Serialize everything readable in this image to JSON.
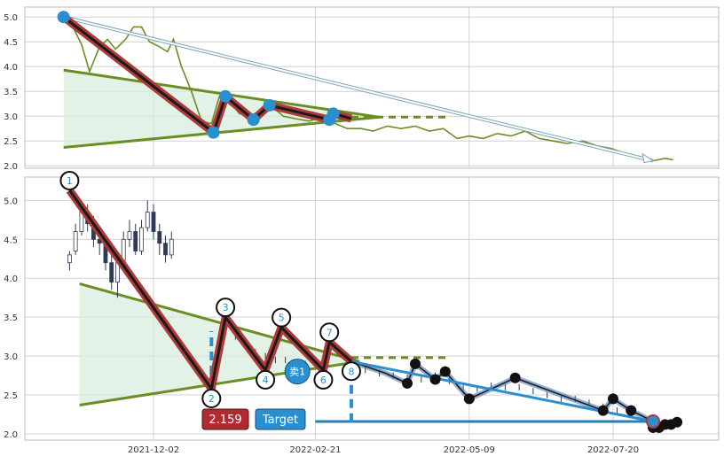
{
  "chart_data": [
    {
      "type": "line",
      "panel": "top",
      "ylim": [
        1.95,
        5.2
      ],
      "yticks": [
        "2.0",
        "2.5",
        "3.0",
        "3.5",
        "4.0",
        "4.5",
        "5.0"
      ],
      "ytick_values": [
        2.0,
        2.5,
        3.0,
        3.5,
        4.0,
        4.5,
        5.0
      ],
      "grid": true,
      "series": [
        {
          "role": "price",
          "color": "#6b8e23",
          "points": [
            [
              "2021-10-18",
              5.0
            ],
            [
              "2021-10-22",
              4.85
            ],
            [
              "2021-10-27",
              4.45
            ],
            [
              "2021-10-31",
              3.9
            ],
            [
              "2021-11-05",
              4.4
            ],
            [
              "2021-11-09",
              4.55
            ],
            [
              "2021-11-13",
              4.35
            ],
            [
              "2021-11-18",
              4.55
            ],
            [
              "2021-11-22",
              4.8
            ],
            [
              "2021-11-26",
              4.8
            ],
            [
              "2021-11-30",
              4.5
            ],
            [
              "2021-12-05",
              4.4
            ],
            [
              "2021-12-09",
              4.3
            ],
            [
              "2021-12-12",
              4.55
            ],
            [
              "2021-12-16",
              4.0
            ],
            [
              "2021-12-21",
              3.5
            ],
            [
              "2021-12-26",
              2.9
            ],
            [
              "2021-12-31",
              2.85
            ],
            [
              "2022-01-04",
              3.4
            ],
            [
              "2022-01-09",
              3.3
            ],
            [
              "2022-01-14",
              3.05
            ],
            [
              "2022-01-19",
              3.0
            ],
            [
              "2022-01-24",
              3.1
            ],
            [
              "2022-01-30",
              3.2
            ],
            [
              "2022-02-05",
              3.0
            ],
            [
              "2022-02-11",
              2.95
            ],
            [
              "2022-02-18",
              2.9
            ],
            [
              "2022-02-25",
              3.0
            ],
            [
              "2022-03-03",
              2.85
            ],
            [
              "2022-03-09",
              2.75
            ],
            [
              "2022-03-16",
              2.75
            ],
            [
              "2022-03-22",
              2.7
            ],
            [
              "2022-03-29",
              2.8
            ],
            [
              "2022-04-05",
              2.75
            ],
            [
              "2022-04-12",
              2.8
            ],
            [
              "2022-04-19",
              2.7
            ],
            [
              "2022-04-26",
              2.75
            ],
            [
              "2022-05-03",
              2.55
            ],
            [
              "2022-05-09",
              2.6
            ],
            [
              "2022-05-16",
              2.55
            ],
            [
              "2022-05-23",
              2.65
            ],
            [
              "2022-05-30",
              2.6
            ],
            [
              "2022-06-06",
              2.7
            ],
            [
              "2022-06-13",
              2.55
            ],
            [
              "2022-06-20",
              2.5
            ],
            [
              "2022-06-27",
              2.45
            ],
            [
              "2022-07-05",
              2.5
            ],
            [
              "2022-07-12",
              2.4
            ],
            [
              "2022-07-19",
              2.35
            ],
            [
              "2022-07-26",
              2.25
            ],
            [
              "2022-08-02",
              2.15
            ],
            [
              "2022-08-09",
              2.1
            ],
            [
              "2022-08-15",
              2.15
            ],
            [
              "2022-08-19",
              2.12
            ]
          ]
        }
      ],
      "zigzag": [
        [
          "2021-10-18",
          5.0
        ],
        [
          "2022-01-01",
          2.67
        ],
        [
          "2022-01-07",
          3.4
        ],
        [
          "2022-01-21",
          2.93
        ],
        [
          "2022-01-29",
          3.22
        ],
        [
          "2022-02-28",
          2.93
        ],
        [
          "2022-03-02",
          3.05
        ],
        [
          "2022-03-11",
          2.95
        ]
      ],
      "triangle": {
        "upper": [
          [
            "2021-10-18",
            3.93
          ],
          [
            "2022-03-25",
            2.98
          ]
        ],
        "lower": [
          [
            "2021-10-18",
            2.37
          ],
          [
            "2022-03-25",
            2.98
          ]
        ],
        "flat": [
          [
            "2022-03-11",
            2.98
          ],
          [
            "2022-04-28",
            2.98
          ]
        ]
      },
      "arrow": [
        [
          "2021-10-18",
          5.0
        ],
        [
          "2022-08-09",
          2.1
        ]
      ]
    },
    {
      "type": "candlestick",
      "panel": "bottom",
      "ylim": [
        1.92,
        5.3
      ],
      "yticks": [
        "2.0",
        "2.5",
        "3.0",
        "3.5",
        "4.0",
        "4.5",
        "5.0"
      ],
      "ytick_values": [
        2.0,
        2.5,
        3.0,
        3.5,
        4.0,
        4.5,
        5.0
      ],
      "xticks": [
        "2021-12-02",
        "2022-02-21",
        "2022-05-09",
        "2022-07-20"
      ],
      "grid": true,
      "candles": [
        [
          "2021-10-21",
          4.2,
          4.35,
          4.1,
          4.3
        ],
        [
          "2021-10-24",
          4.35,
          4.7,
          4.3,
          4.6
        ],
        [
          "2021-10-27",
          4.6,
          5.0,
          4.55,
          4.85
        ],
        [
          "2021-10-30",
          4.85,
          4.95,
          4.6,
          4.7
        ],
        [
          "2021-11-02",
          4.7,
          4.8,
          4.4,
          4.5
        ],
        [
          "2021-11-05",
          4.5,
          4.65,
          4.3,
          4.45
        ],
        [
          "2021-11-08",
          4.45,
          4.5,
          4.1,
          4.2
        ],
        [
          "2021-11-11",
          4.2,
          4.3,
          3.85,
          3.95
        ],
        [
          "2021-11-14",
          3.95,
          4.3,
          3.75,
          4.2
        ],
        [
          "2021-11-17",
          4.2,
          4.6,
          4.15,
          4.5
        ],
        [
          "2021-11-20",
          4.5,
          4.75,
          4.4,
          4.6
        ],
        [
          "2021-11-23",
          4.6,
          4.7,
          4.3,
          4.35
        ],
        [
          "2021-11-26",
          4.35,
          4.75,
          4.3,
          4.65
        ],
        [
          "2021-11-29",
          4.65,
          5.0,
          4.6,
          4.85
        ],
        [
          "2021-12-02",
          4.85,
          4.95,
          4.5,
          4.6
        ],
        [
          "2021-12-05",
          4.6,
          4.7,
          4.3,
          4.45
        ],
        [
          "2021-12-08",
          4.45,
          4.55,
          4.2,
          4.3
        ],
        [
          "2021-12-11",
          4.3,
          4.6,
          4.25,
          4.5
        ]
      ],
      "mini_candles": [
        [
          "2022-01-07",
          3.35
        ],
        [
          "2022-01-12",
          3.25
        ],
        [
          "2022-01-17",
          3.15
        ],
        [
          "2022-01-22",
          3.05
        ],
        [
          "2022-01-27",
          3.0
        ],
        [
          "2022-02-01",
          2.95
        ],
        [
          "2022-02-06",
          2.95
        ],
        [
          "2022-02-11",
          2.9
        ],
        [
          "2022-02-16",
          2.9
        ],
        [
          "2022-02-21",
          2.95
        ],
        [
          "2022-03-11",
          2.88
        ],
        [
          "2022-03-18",
          2.82
        ],
        [
          "2022-03-25",
          2.78
        ],
        [
          "2022-04-01",
          2.75
        ],
        [
          "2022-04-08",
          2.72
        ],
        [
          "2022-04-15",
          2.7
        ],
        [
          "2022-04-22",
          2.75
        ],
        [
          "2022-04-29",
          2.68
        ],
        [
          "2022-05-06",
          2.6
        ],
        [
          "2022-05-13",
          2.58
        ],
        [
          "2022-05-20",
          2.62
        ],
        [
          "2022-05-27",
          2.6
        ],
        [
          "2022-06-03",
          2.6
        ],
        [
          "2022-06-10",
          2.55
        ],
        [
          "2022-06-17",
          2.5
        ],
        [
          "2022-06-24",
          2.45
        ],
        [
          "2022-07-01",
          2.45
        ],
        [
          "2022-07-08",
          2.4
        ],
        [
          "2022-07-15",
          2.35
        ],
        [
          "2022-07-22",
          2.3
        ],
        [
          "2022-07-29",
          2.25
        ]
      ],
      "zigzag": [
        {
          "label": "1",
          "x": "2021-10-21",
          "y": 5.13
        },
        {
          "label": "2",
          "x": "2021-12-31",
          "y": 2.58
        },
        {
          "label": "3",
          "x": "2022-01-07",
          "y": 3.5
        },
        {
          "label": "4",
          "x": "2022-01-27",
          "y": 2.82
        },
        {
          "label": "5",
          "x": "2022-02-04",
          "y": 3.37
        },
        {
          "label": "6",
          "x": "2022-02-25",
          "y": 2.82
        },
        {
          "label": "7",
          "x": "2022-02-28",
          "y": 3.18
        },
        {
          "label": "8",
          "x": "2022-03-11",
          "y": 2.93
        }
      ],
      "sell_marker": {
        "label": "卖1",
        "x": "2022-02-12",
        "y": 2.8
      },
      "triangle": {
        "upper": [
          [
            "2021-10-26",
            3.93
          ],
          [
            "2022-03-15",
            2.93
          ]
        ],
        "lower": [
          [
            "2021-10-26",
            2.37
          ],
          [
            "2022-03-15",
            2.93
          ]
        ],
        "flat": [
          [
            "2022-03-11",
            2.98
          ],
          [
            "2022-04-28",
            2.98
          ]
        ]
      },
      "dashed_bars": [
        {
          "x": "2021-12-31",
          "from": 2.58,
          "to": 3.32
        },
        {
          "x": "2022-03-11",
          "from": 2.15,
          "to": 2.93
        }
      ],
      "target_line": {
        "from": "2022-02-21",
        "to": "2022-08-09",
        "y": 2.159
      },
      "projection": [
        [
          "2022-03-11",
          2.93
        ],
        [
          "2022-08-09",
          2.16
        ]
      ],
      "projection_path": [
        [
          "2022-03-11",
          2.93
        ],
        [
          "2022-03-28",
          2.78
        ],
        [
          "2022-04-08",
          2.65
        ],
        [
          "2022-04-12",
          2.9
        ],
        [
          "2022-04-22",
          2.7
        ],
        [
          "2022-04-27",
          2.8
        ],
        [
          "2022-05-09",
          2.45
        ],
        [
          "2022-05-22",
          2.6
        ],
        [
          "2022-06-01",
          2.72
        ],
        [
          "2022-07-15",
          2.3
        ],
        [
          "2022-07-20",
          2.45
        ],
        [
          "2022-07-29",
          2.3
        ],
        [
          "2022-08-09",
          2.16
        ]
      ],
      "black_dots": [
        [
          "2022-04-08",
          2.65
        ],
        [
          "2022-04-12",
          2.9
        ],
        [
          "2022-04-22",
          2.7
        ],
        [
          "2022-04-27",
          2.8
        ],
        [
          "2022-05-09",
          2.45
        ],
        [
          "2022-06-01",
          2.72
        ],
        [
          "2022-07-15",
          2.3
        ],
        [
          "2022-07-20",
          2.45
        ],
        [
          "2022-07-29",
          2.3
        ],
        [
          "2022-08-09",
          2.08
        ],
        [
          "2022-08-12",
          2.08
        ],
        [
          "2022-08-15",
          2.12
        ],
        [
          "2022-08-18",
          2.12
        ],
        [
          "2022-08-21",
          2.15
        ]
      ],
      "target_price": "2.159",
      "target_label": "Target"
    }
  ],
  "colors": {
    "price": "#6b8e23",
    "zigzag_outer": "#b03a3a",
    "zigzag_inner": "#1a1a1a",
    "pivot": "#2a8fd0",
    "triangle_fill": "#d8eedd",
    "trend": "#6b8e23",
    "target_bg": "#2a8fd0",
    "price_bg": "#b02a30",
    "grid": "#d0d0d0",
    "candle": "#2f3a55"
  }
}
